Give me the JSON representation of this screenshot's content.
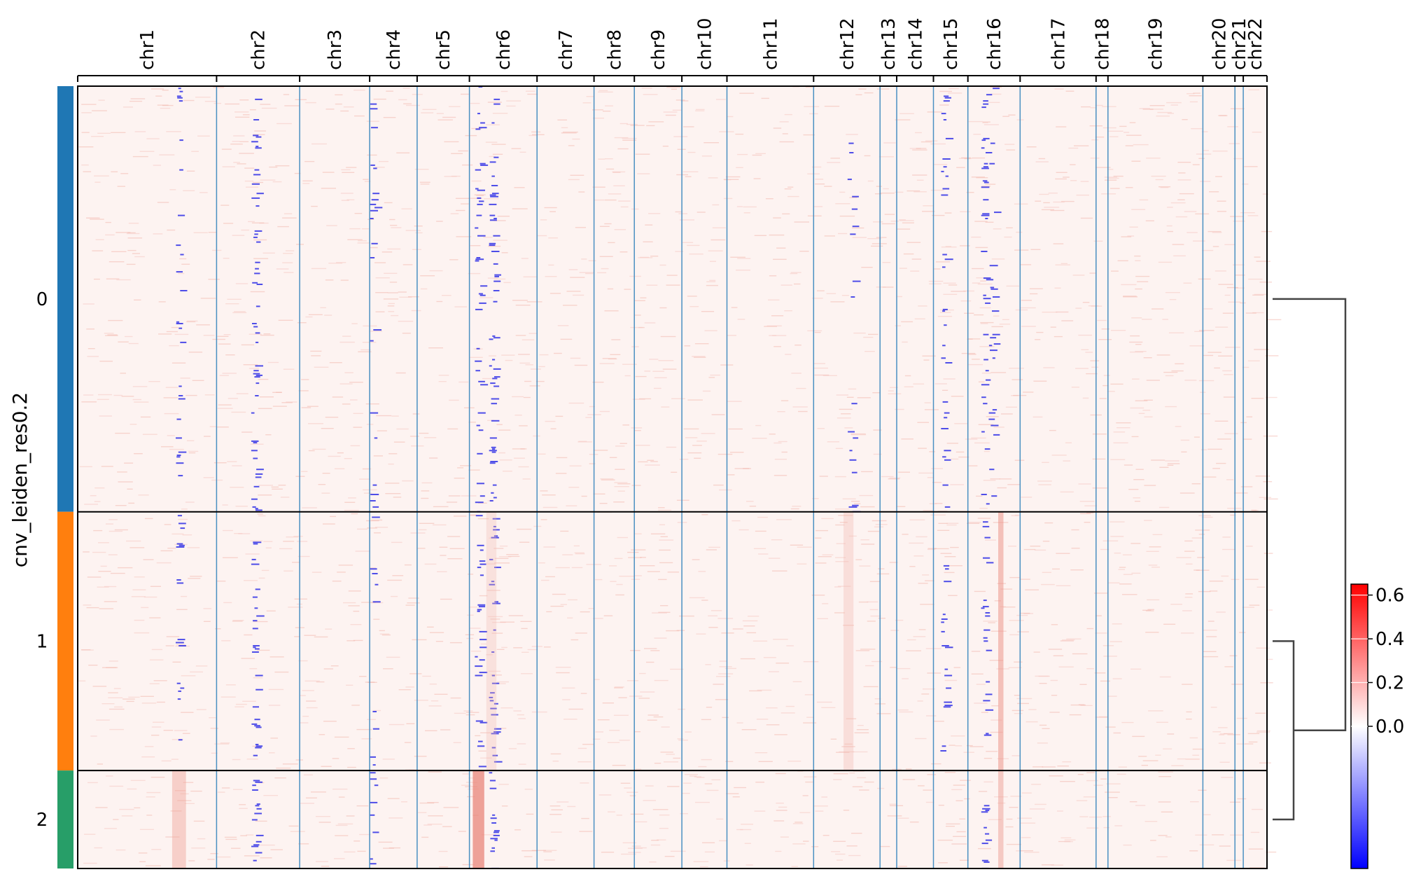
{
  "chart_data": {
    "type": "heatmap",
    "title": "",
    "ylabel": "cnv_leiden_res0.2",
    "xlabel": "",
    "chromosomes": [
      {
        "name": "chr1",
        "start": 0,
        "end": 117
      },
      {
        "name": "chr2",
        "start": 117,
        "end": 187
      },
      {
        "name": "chr3",
        "start": 187,
        "end": 246
      },
      {
        "name": "chr4",
        "start": 246,
        "end": 286
      },
      {
        "name": "chr5",
        "start": 286,
        "end": 330
      },
      {
        "name": "chr6",
        "start": 330,
        "end": 387
      },
      {
        "name": "chr7",
        "start": 387,
        "end": 435
      },
      {
        "name": "chr8",
        "start": 435,
        "end": 469
      },
      {
        "name": "chr9",
        "start": 469,
        "end": 509
      },
      {
        "name": "chr10",
        "start": 509,
        "end": 547
      },
      {
        "name": "chr11",
        "start": 547,
        "end": 620
      },
      {
        "name": "chr12",
        "start": 620,
        "end": 676
      },
      {
        "name": "chr13",
        "start": 676,
        "end": 690
      },
      {
        "name": "chr14",
        "start": 690,
        "end": 721
      },
      {
        "name": "chr15",
        "start": 721,
        "end": 750
      },
      {
        "name": "chr16",
        "start": 750,
        "end": 794
      },
      {
        "name": "chr17",
        "start": 794,
        "end": 858
      },
      {
        "name": "chr18",
        "start": 858,
        "end": 868
      },
      {
        "name": "chr19",
        "start": 868,
        "end": 948
      },
      {
        "name": "chr20",
        "start": 948,
        "end": 975
      },
      {
        "name": "chr21",
        "start": 975,
        "end": 982
      },
      {
        "name": "chr22",
        "start": 982,
        "end": 1002
      }
    ],
    "groups": [
      {
        "label": "0",
        "color": "#1f77b4",
        "size": 543
      },
      {
        "label": "1",
        "color": "#ff7f0e",
        "size": 330
      },
      {
        "label": "2",
        "color": "#279e68",
        "size": 125
      }
    ],
    "colorbar": {
      "vmin": -0.65,
      "vmax": 0.65,
      "ticks": [
        0.0,
        0.2,
        0.4,
        0.6
      ],
      "tick_labels": [
        "0.0",
        "0.2",
        "0.4",
        "0.6"
      ],
      "colormap": [
        "#0000ff",
        "#ffffff",
        "#ff0000"
      ]
    },
    "dendrogram": {
      "links": [
        {
          "children": [
            "1",
            "2"
          ]
        },
        {
          "children": [
            "0",
            "1+2"
          ]
        }
      ]
    },
    "features": [
      {
        "group": "2",
        "chr": "chr6",
        "description": "gain (red) in chr6"
      },
      {
        "group": "1",
        "chr": "chr16",
        "description": "gain (red) band in chr16"
      },
      {
        "group": "2",
        "chr": "chr1",
        "description": "mild gain (red) in chr1"
      }
    ]
  }
}
